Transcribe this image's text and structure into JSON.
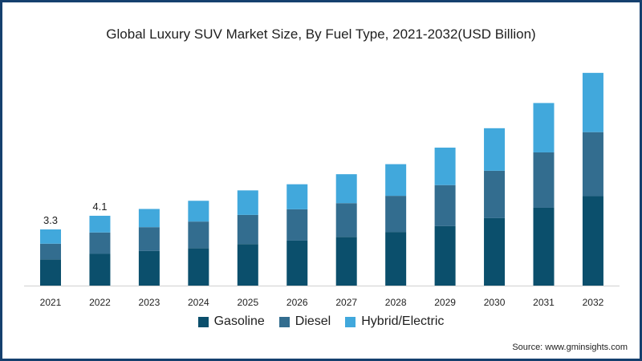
{
  "chart_data": {
    "type": "bar",
    "stacked": true,
    "title": "Global Luxury SUV Market Size, By Fuel Type, 2021-2032(USD Billion)",
    "xlabel": "",
    "ylabel": "",
    "categories": [
      "2021",
      "2022",
      "2023",
      "2024",
      "2025",
      "2026",
      "2027",
      "2028",
      "2029",
      "2030",
      "2031",
      "2032"
    ],
    "series": [
      {
        "name": "Gasoline",
        "color": "#0b4f6c",
        "values": [
          1.54,
          1.86,
          2.03,
          2.2,
          2.44,
          2.64,
          2.86,
          3.15,
          3.5,
          3.96,
          4.57,
          5.25
        ]
      },
      {
        "name": "Diesel",
        "color": "#336d8f",
        "values": [
          0.92,
          1.26,
          1.4,
          1.56,
          1.71,
          1.84,
          1.98,
          2.12,
          2.4,
          2.78,
          3.25,
          3.76
        ]
      },
      {
        "name": "Hybrid/Electric",
        "color": "#41a8dc",
        "values": [
          0.84,
          0.98,
          1.07,
          1.22,
          1.44,
          1.47,
          1.7,
          1.86,
          2.2,
          2.5,
          2.9,
          3.48
        ]
      }
    ],
    "data_labels": [
      {
        "category": "2021",
        "text": "3.3"
      },
      {
        "category": "2022",
        "text": "4.1"
      }
    ],
    "ylim": [
      0,
      13
    ],
    "grid": false,
    "legend_position": "bottom"
  },
  "source": "Source: www.gminsights.com"
}
